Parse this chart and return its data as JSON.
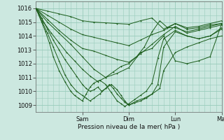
{
  "bg_color": "#cce8e0",
  "grid_color": "#99ccbb",
  "line_color": "#1a5c1a",
  "ylabel_text": "Pression niveau de la mer( hPa )",
  "yticks": [
    1009,
    1010,
    1011,
    1012,
    1013,
    1014,
    1015,
    1016
  ],
  "ylim": [
    1008.5,
    1016.5
  ],
  "xlim": [
    0,
    96
  ],
  "xtick_positions": [
    24,
    48,
    72,
    96
  ],
  "xtick_labels": [
    "Sam",
    "Dim",
    "Lun",
    "Mar"
  ],
  "figsize": [
    3.2,
    2.0
  ],
  "dpi": 100,
  "lines": [
    {
      "x": [
        0,
        6,
        12,
        18,
        24,
        30,
        36,
        42,
        48,
        54,
        60,
        66,
        72,
        78,
        84,
        90,
        96
      ],
      "y": [
        1016.0,
        1015.8,
        1015.6,
        1015.4,
        1015.1,
        1015.0,
        1014.95,
        1014.9,
        1014.85,
        1015.1,
        1015.3,
        1014.5,
        1014.9,
        1014.6,
        1014.7,
        1014.9,
        1015.1
      ]
    },
    {
      "x": [
        0,
        6,
        12,
        18,
        24,
        30,
        36,
        42,
        48,
        54,
        60,
        66,
        72,
        78,
        84,
        90,
        96
      ],
      "y": [
        1016.0,
        1015.5,
        1015.0,
        1014.5,
        1014.1,
        1013.9,
        1013.7,
        1013.5,
        1013.3,
        1013.7,
        1014.1,
        1014.4,
        1014.9,
        1014.5,
        1014.6,
        1014.8,
        1014.9
      ]
    },
    {
      "x": [
        0,
        6,
        12,
        18,
        24,
        30,
        36,
        42,
        48,
        54,
        60,
        66,
        72,
        78,
        84,
        90,
        96
      ],
      "y": [
        1016.0,
        1015.2,
        1014.4,
        1013.7,
        1013.1,
        1012.9,
        1012.6,
        1012.3,
        1012.1,
        1012.7,
        1013.4,
        1014.1,
        1014.7,
        1014.2,
        1014.4,
        1014.6,
        1014.8
      ]
    },
    {
      "x": [
        0,
        4,
        8,
        12,
        16,
        20,
        24,
        28,
        32,
        36,
        40,
        44,
        48,
        52,
        56,
        60,
        64,
        68,
        72,
        78,
        84,
        90,
        96
      ],
      "y": [
        1016.0,
        1015.0,
        1014.2,
        1013.5,
        1012.8,
        1012.2,
        1011.6,
        1011.1,
        1010.7,
        1011.0,
        1011.4,
        1011.8,
        1012.0,
        1012.5,
        1013.2,
        1014.3,
        1015.1,
        1014.6,
        1014.6,
        1014.3,
        1014.5,
        1014.7,
        1014.9
      ]
    },
    {
      "x": [
        0,
        3,
        6,
        9,
        12,
        15,
        18,
        21,
        24,
        26,
        28,
        30,
        32,
        34,
        36,
        38,
        40,
        42,
        44,
        46,
        48,
        52,
        56,
        60,
        64,
        66,
        72,
        78,
        84,
        90,
        96
      ],
      "y": [
        1016.0,
        1015.3,
        1014.5,
        1013.7,
        1013.0,
        1012.3,
        1011.7,
        1011.1,
        1010.5,
        1010.2,
        1010.0,
        1010.1,
        1010.3,
        1010.0,
        1010.2,
        1010.5,
        1010.2,
        1009.8,
        1009.5,
        1009.2,
        1009.0,
        1009.3,
        1009.5,
        1009.8,
        1010.2,
        1011.5,
        1012.8,
        1013.2,
        1013.5,
        1013.8,
        1014.0
      ]
    },
    {
      "x": [
        0,
        3,
        6,
        9,
        12,
        15,
        18,
        21,
        24,
        26,
        28,
        30,
        33,
        36,
        39,
        42,
        44,
        46,
        48,
        51,
        54,
        57,
        60,
        63,
        66,
        72,
        78,
        84,
        90,
        96
      ],
      "y": [
        1016.0,
        1015.1,
        1014.2,
        1013.2,
        1012.2,
        1011.2,
        1010.5,
        1010.0,
        1009.7,
        1009.5,
        1009.3,
        1009.5,
        1009.8,
        1010.2,
        1010.5,
        1010.1,
        1009.7,
        1009.3,
        1009.0,
        1009.15,
        1009.3,
        1009.5,
        1009.8,
        1010.5,
        1013.2,
        1014.3,
        1014.0,
        1013.8,
        1014.0,
        1014.6
      ]
    },
    {
      "x": [
        0,
        3,
        5,
        7,
        9,
        12,
        15,
        18,
        20,
        22,
        24,
        26,
        28,
        30,
        33,
        36,
        39,
        42,
        44,
        46,
        48,
        51,
        54,
        57,
        60,
        63,
        66,
        72,
        78,
        84,
        90,
        96
      ],
      "y": [
        1016.0,
        1015.0,
        1014.3,
        1013.5,
        1012.5,
        1011.5,
        1010.7,
        1010.0,
        1009.7,
        1009.5,
        1009.3,
        1009.8,
        1010.3,
        1010.6,
        1010.8,
        1010.5,
        1009.9,
        1009.3,
        1009.1,
        1008.9,
        1009.1,
        1009.4,
        1009.7,
        1010.0,
        1010.6,
        1012.4,
        1013.8,
        1014.4,
        1014.0,
        1013.8,
        1014.0,
        1014.5
      ]
    },
    {
      "x": [
        0,
        6,
        12,
        18,
        24,
        30,
        36,
        42,
        48,
        54,
        60,
        66,
        72,
        78,
        84,
        90,
        96
      ],
      "y": [
        1016.0,
        1015.0,
        1014.2,
        1013.4,
        1012.5,
        1011.6,
        1011.0,
        1011.3,
        1011.7,
        1012.8,
        1013.1,
        1014.0,
        1012.2,
        1012.0,
        1012.2,
        1012.5,
        1014.9
      ]
    }
  ]
}
